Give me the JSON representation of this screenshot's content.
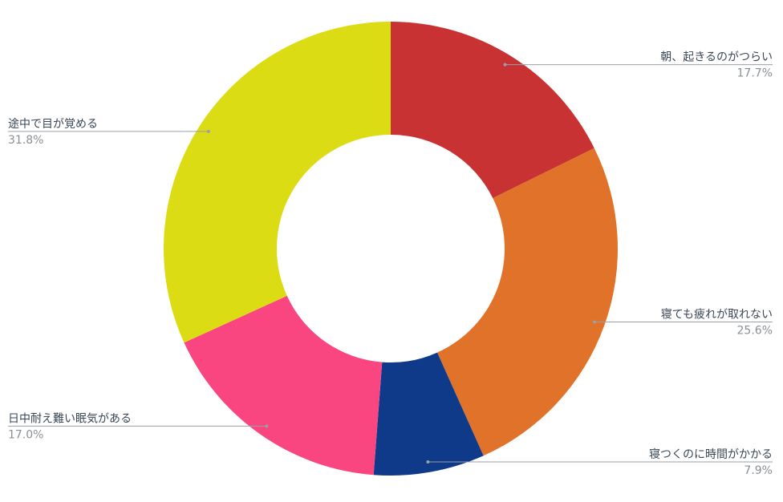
{
  "chart_data": {
    "type": "donut",
    "categories": [
      "朝、起きるのがつらい",
      "寝ても疲れが取れない",
      "寝つくのに時間がかかる",
      "日中耐え難い眠気がある",
      "途中で目が覚める"
    ],
    "values": [
      17.7,
      25.6,
      7.9,
      17.0,
      31.8
    ],
    "value_labels": [
      "17.7%",
      "25.6%",
      "7.9%",
      "17.0%",
      "31.8%"
    ],
    "colors": [
      "#c83232",
      "#e0722a",
      "#0f3a8a",
      "#f94680",
      "#dcdc14"
    ]
  }
}
